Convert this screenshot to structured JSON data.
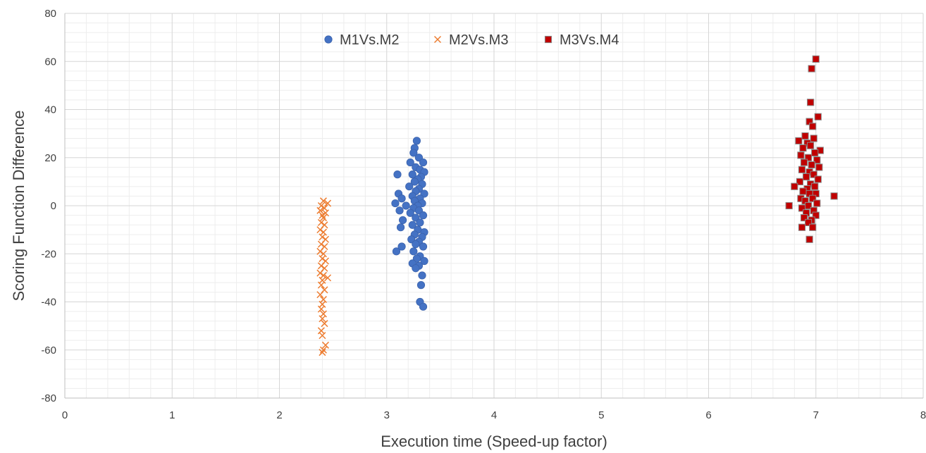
{
  "chart_data": {
    "type": "scatter",
    "title": "",
    "xlabel": "Execution time (Speed-up factor)",
    "ylabel": "Scoring Function Difference",
    "xlim": [
      0,
      8
    ],
    "ylim": [
      -80,
      80
    ],
    "x_ticks": [
      0,
      1,
      2,
      3,
      4,
      5,
      6,
      7,
      8
    ],
    "y_ticks": [
      -80,
      -60,
      -40,
      -20,
      0,
      20,
      40,
      60,
      80
    ],
    "x_tick_labels": [
      "0",
      "1",
      "2",
      "3",
      "4",
      "5",
      "6",
      "7",
      "8"
    ],
    "y_tick_labels": [
      "-80",
      "-60",
      "-40",
      "-20",
      "0",
      "20",
      "40",
      "60",
      "80"
    ],
    "grid": true,
    "minor_grid": true,
    "legend_position": "top",
    "series": [
      {
        "name": "M1Vs.M2",
        "marker": "circle",
        "color": "#4472C4",
        "points": [
          [
            3.28,
            27
          ],
          [
            3.26,
            24
          ],
          [
            3.25,
            22
          ],
          [
            3.3,
            20
          ],
          [
            3.22,
            18
          ],
          [
            3.34,
            18
          ],
          [
            3.27,
            16
          ],
          [
            3.31,
            15
          ],
          [
            3.35,
            14
          ],
          [
            3.24,
            13
          ],
          [
            3.1,
            13
          ],
          [
            3.32,
            12
          ],
          [
            3.29,
            11
          ],
          [
            3.26,
            10
          ],
          [
            3.33,
            9
          ],
          [
            3.21,
            8
          ],
          [
            3.3,
            7
          ],
          [
            3.27,
            6
          ],
          [
            3.11,
            5
          ],
          [
            3.35,
            5
          ],
          [
            3.24,
            4
          ],
          [
            3.14,
            3
          ],
          [
            3.31,
            3
          ],
          [
            3.26,
            2
          ],
          [
            3.08,
            1
          ],
          [
            3.33,
            1
          ],
          [
            3.29,
            0
          ],
          [
            3.18,
            0
          ],
          [
            3.25,
            -1
          ],
          [
            3.12,
            -2
          ],
          [
            3.3,
            -2
          ],
          [
            3.22,
            -3
          ],
          [
            3.34,
            -4
          ],
          [
            3.27,
            -5
          ],
          [
            3.15,
            -6
          ],
          [
            3.31,
            -7
          ],
          [
            3.24,
            -8
          ],
          [
            3.13,
            -9
          ],
          [
            3.29,
            -10
          ],
          [
            3.35,
            -11
          ],
          [
            3.26,
            -12
          ],
          [
            3.33,
            -13
          ],
          [
            3.23,
            -14
          ],
          [
            3.3,
            -15
          ],
          [
            3.27,
            -16
          ],
          [
            3.34,
            -17
          ],
          [
            3.14,
            -17
          ],
          [
            3.25,
            -19
          ],
          [
            3.09,
            -19
          ],
          [
            3.31,
            -21
          ],
          [
            3.28,
            -22
          ],
          [
            3.35,
            -23
          ],
          [
            3.24,
            -24
          ],
          [
            3.3,
            -25
          ],
          [
            3.27,
            -26
          ],
          [
            3.33,
            -29
          ],
          [
            3.32,
            -33
          ],
          [
            3.31,
            -40
          ],
          [
            3.34,
            -42
          ]
        ]
      },
      {
        "name": "M2Vs.M3",
        "marker": "cross",
        "color": "#ED7D31",
        "points": [
          [
            2.41,
            2
          ],
          [
            2.45,
            1
          ],
          [
            2.39,
            0
          ],
          [
            2.42,
            -1
          ],
          [
            2.38,
            -2
          ],
          [
            2.43,
            -3
          ],
          [
            2.4,
            -4
          ],
          [
            2.41,
            -5
          ],
          [
            2.39,
            -7
          ],
          [
            2.42,
            -8
          ],
          [
            2.38,
            -10
          ],
          [
            2.41,
            -11
          ],
          [
            2.4,
            -13
          ],
          [
            2.43,
            -14
          ],
          [
            2.39,
            -16
          ],
          [
            2.42,
            -17
          ],
          [
            2.38,
            -19
          ],
          [
            2.41,
            -20
          ],
          [
            2.4,
            -22
          ],
          [
            2.43,
            -23
          ],
          [
            2.39,
            -25
          ],
          [
            2.42,
            -26
          ],
          [
            2.38,
            -28
          ],
          [
            2.41,
            -29
          ],
          [
            2.45,
            -30
          ],
          [
            2.4,
            -31
          ],
          [
            2.39,
            -33
          ],
          [
            2.42,
            -35
          ],
          [
            2.38,
            -37
          ],
          [
            2.41,
            -39
          ],
          [
            2.4,
            -41
          ],
          [
            2.39,
            -43
          ],
          [
            2.41,
            -45
          ],
          [
            2.4,
            -47
          ],
          [
            2.42,
            -49
          ],
          [
            2.39,
            -52
          ],
          [
            2.4,
            -54
          ],
          [
            2.43,
            -58
          ],
          [
            2.41,
            -60
          ],
          [
            2.4,
            -61
          ]
        ]
      },
      {
        "name": "M3Vs.M4",
        "marker": "square",
        "color": "#C00000",
        "points": [
          [
            7.0,
            61
          ],
          [
            6.96,
            57
          ],
          [
            6.95,
            43
          ],
          [
            7.02,
            37
          ],
          [
            6.94,
            35
          ],
          [
            6.97,
            33
          ],
          [
            6.9,
            29
          ],
          [
            6.98,
            28
          ],
          [
            6.84,
            27
          ],
          [
            6.92,
            26
          ],
          [
            6.95,
            25
          ],
          [
            6.88,
            24
          ],
          [
            7.04,
            23
          ],
          [
            6.99,
            22
          ],
          [
            6.86,
            21
          ],
          [
            6.93,
            20
          ],
          [
            7.01,
            19
          ],
          [
            6.89,
            18
          ],
          [
            6.96,
            17
          ],
          [
            7.03,
            16
          ],
          [
            6.87,
            15
          ],
          [
            6.94,
            14
          ],
          [
            6.98,
            13
          ],
          [
            6.91,
            12
          ],
          [
            7.02,
            11
          ],
          [
            6.85,
            10
          ],
          [
            6.95,
            9
          ],
          [
            6.8,
            8
          ],
          [
            6.99,
            8
          ],
          [
            6.92,
            7
          ],
          [
            6.88,
            6
          ],
          [
            7.0,
            5
          ],
          [
            6.94,
            5
          ],
          [
            7.17,
            4
          ],
          [
            6.86,
            3
          ],
          [
            6.97,
            3
          ],
          [
            6.9,
            2
          ],
          [
            7.01,
            1
          ],
          [
            6.75,
            0
          ],
          [
            6.93,
            0
          ],
          [
            6.87,
            -1
          ],
          [
            6.98,
            -2
          ],
          [
            6.91,
            -3
          ],
          [
            7.0,
            -4
          ],
          [
            6.89,
            -5
          ],
          [
            6.96,
            -6
          ],
          [
            6.93,
            -7
          ],
          [
            6.87,
            -9
          ],
          [
            6.97,
            -9
          ],
          [
            6.94,
            -14
          ]
        ]
      }
    ]
  }
}
